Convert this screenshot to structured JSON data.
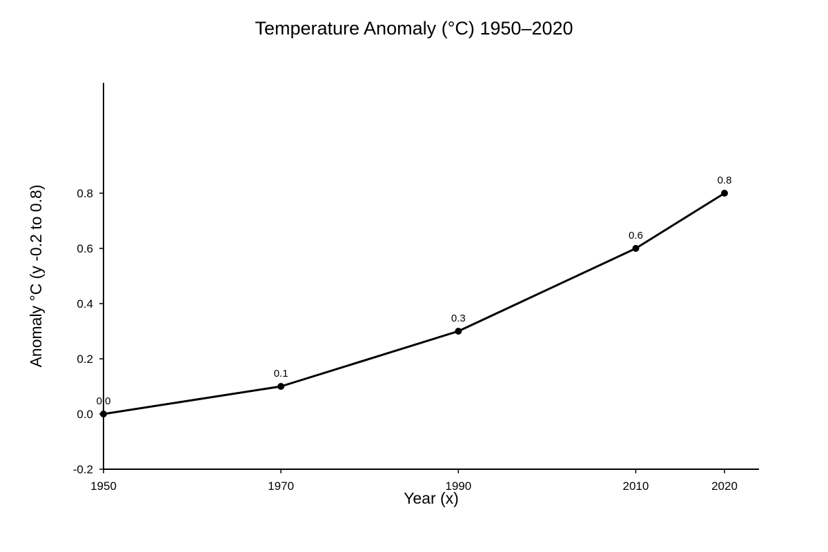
{
  "chart_data": {
    "type": "line",
    "title": "Temperature Anomaly (°C) 1950–2020",
    "xlabel": "Year (x)",
    "ylabel": "Anomaly °C (y -0.2 to 0.8)",
    "x": [
      1950,
      1970,
      1990,
      2010,
      2020
    ],
    "series": [
      {
        "values": [
          0.0,
          0.1,
          0.3,
          0.6,
          0.8
        ],
        "data_labels": [
          "0.0",
          "0.1",
          "0.3",
          "0.6",
          "0.8"
        ]
      }
    ],
    "x_ticks": [
      1950,
      1970,
      1990,
      2010,
      2020
    ],
    "x_tick_labels": [
      "1950",
      "1970",
      "1990",
      "2010",
      "2020"
    ],
    "y_ticks": [
      -0.2,
      0.0,
      0.2,
      0.4,
      0.6,
      0.8
    ],
    "y_tick_labels": [
      "-0.2",
      "0.0",
      "0.2",
      "0.4",
      "0.6",
      "0.8"
    ],
    "xlim": [
      1950,
      2020
    ],
    "ylim": [
      -0.2,
      1.2
    ],
    "grid": false,
    "legend": "none",
    "line_color": "#000000",
    "marker_color": "#000000"
  }
}
